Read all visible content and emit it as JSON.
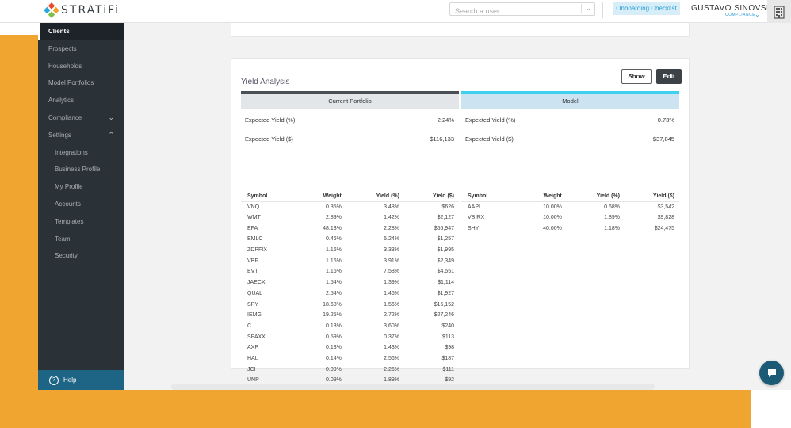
{
  "header": {
    "logo_text": "STRATiFi",
    "search_placeholder": "Search a user",
    "onboarding_label": "Onboarding Checklist",
    "user_name": "GUSTAVO SINOVSKY",
    "user_role": "COMPLIANCE"
  },
  "sidebar": {
    "items": [
      {
        "label": "Clients"
      },
      {
        "label": "Prospects"
      },
      {
        "label": "Households"
      },
      {
        "label": "Model Portfolios"
      },
      {
        "label": "Analytics"
      },
      {
        "label": "Compliance"
      },
      {
        "label": "Settings"
      },
      {
        "label": "Integrations"
      },
      {
        "label": "Business Profile"
      },
      {
        "label": "My Profile"
      },
      {
        "label": "Accounts"
      },
      {
        "label": "Templates"
      },
      {
        "label": "Team"
      },
      {
        "label": "Security"
      }
    ],
    "help_label": "Help"
  },
  "card": {
    "title": "Yield Analysis",
    "show_label": "Show",
    "edit_label": "Edit",
    "current": {
      "header": "Current Portfolio",
      "expected_yield_pct_label": "Expected Yield (%)",
      "expected_yield_pct": "2.24%",
      "expected_yield_usd_label": "Expected Yield ($)",
      "expected_yield_usd": "$116,133"
    },
    "model": {
      "header": "Model",
      "expected_yield_pct_label": "Expected Yield (%)",
      "expected_yield_pct": "0.73%",
      "expected_yield_usd_label": "Expected Yield ($)",
      "expected_yield_usd": "$37,845"
    },
    "columns": [
      "Symbol",
      "Weight",
      "Yield (%)",
      "Yield ($)"
    ],
    "current_rows": [
      [
        "VNQ",
        "0.35%",
        "3.48%",
        "$626"
      ],
      [
        "WMT",
        "2.89%",
        "1.42%",
        "$2,127"
      ],
      [
        "EFA",
        "48.13%",
        "2.28%",
        "$56,947"
      ],
      [
        "EMLC",
        "0.46%",
        "5.24%",
        "$1,257"
      ],
      [
        "ZDPFIX",
        "1.16%",
        "3.33%",
        "$1,995"
      ],
      [
        "VBF",
        "1.16%",
        "3.91%",
        "$2,349"
      ],
      [
        "EVT",
        "1.16%",
        "7.58%",
        "$4,551"
      ],
      [
        "JAECX",
        "1.54%",
        "1.39%",
        "$1,114"
      ],
      [
        "QUAL",
        "2.54%",
        "1.46%",
        "$1,927"
      ],
      [
        "SPY",
        "18.68%",
        "1.56%",
        "$15,152"
      ],
      [
        "IEMG",
        "19.25%",
        "2.72%",
        "$27,246"
      ],
      [
        "C",
        "0.13%",
        "3.60%",
        "$240"
      ],
      [
        "SPAXX",
        "0.59%",
        "0.37%",
        "$113"
      ],
      [
        "AXP",
        "0.13%",
        "1.43%",
        "$98"
      ],
      [
        "HAL",
        "0.14%",
        "2.56%",
        "$187"
      ],
      [
        "JCI",
        "0.09%",
        "2.26%",
        "$111"
      ],
      [
        "UNP",
        "0.09%",
        "1.89%",
        "$92"
      ]
    ],
    "model_rows": [
      [
        "AAPL",
        "10.00%",
        "0.68%",
        "$3,542"
      ],
      [
        "VBIRX",
        "10.00%",
        "1.89%",
        "$9,828"
      ],
      [
        "SHY",
        "40.00%",
        "1.18%",
        "$24,475"
      ]
    ]
  }
}
